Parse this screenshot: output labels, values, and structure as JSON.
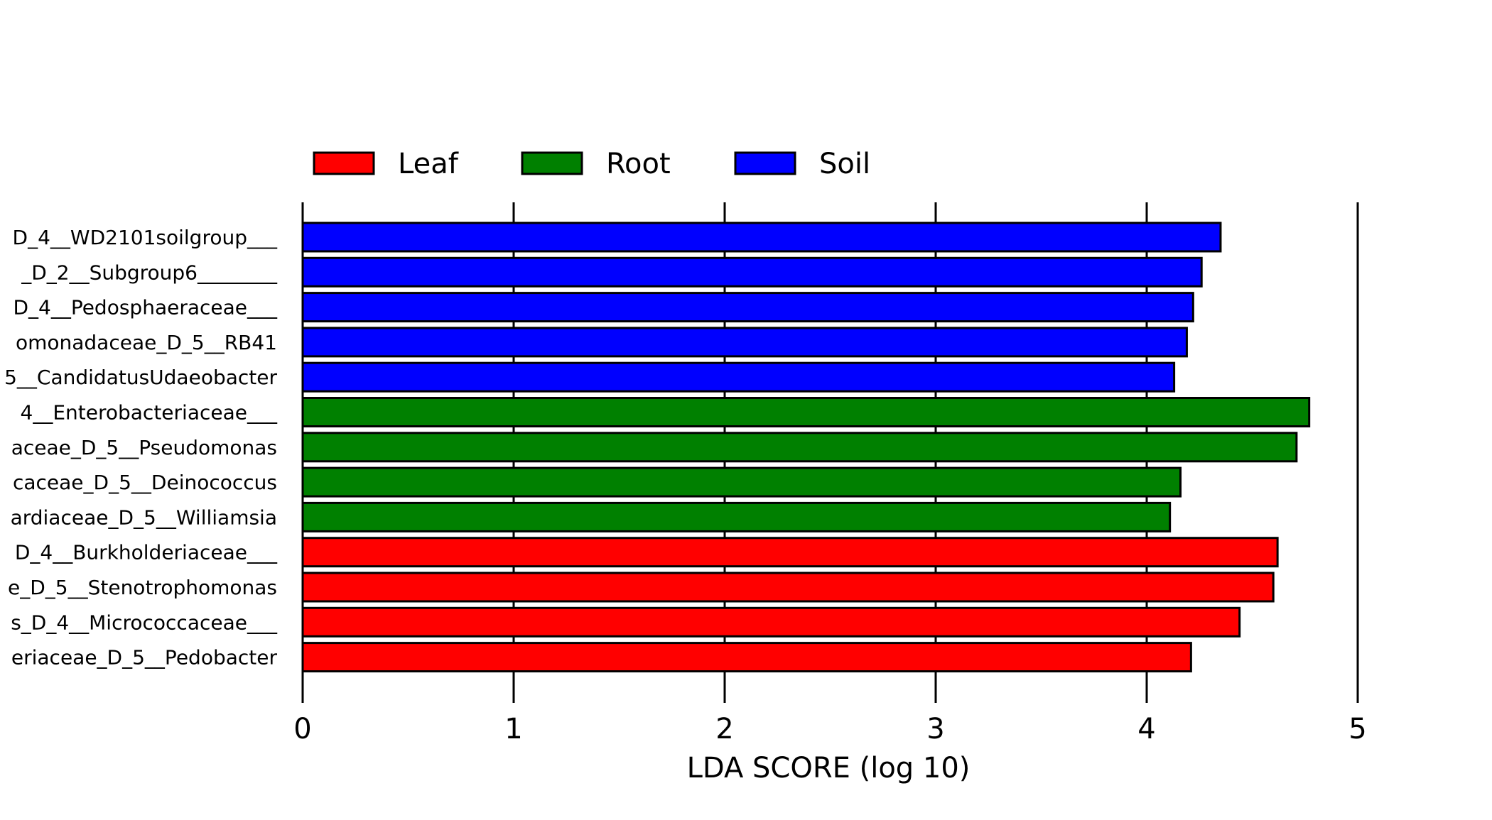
{
  "chart_data": {
    "type": "bar",
    "orientation": "horizontal",
    "xlabel": "LDA SCORE (log 10)",
    "xlim": [
      0,
      5
    ],
    "xticks": [
      "0",
      "1",
      "2",
      "3",
      "4",
      "5"
    ],
    "grid": "vertical lines at integer ticks",
    "legend": {
      "placement": "top-left",
      "entries": [
        {
          "name": "Leaf",
          "color": "#ff0000"
        },
        {
          "name": "Root",
          "color": "#008000"
        },
        {
          "name": "Soil",
          "color": "#0000ff"
        }
      ]
    },
    "bars": [
      {
        "label": "D_4__WD2101soilgroup___",
        "value": 4.35,
        "group": "Soil"
      },
      {
        "label": "_D_2__Subgroup6________",
        "value": 4.26,
        "group": "Soil"
      },
      {
        "label": "D_4__Pedosphaeraceae___",
        "value": 4.22,
        "group": "Soil"
      },
      {
        "label": "omonadaceae_D_5__RB41",
        "value": 4.19,
        "group": "Soil"
      },
      {
        "label": "5__CandidatusUdaeobacter",
        "value": 4.13,
        "group": "Soil"
      },
      {
        "label": "4__Enterobacteriaceae___",
        "value": 4.77,
        "group": "Root"
      },
      {
        "label": "aceae_D_5__Pseudomonas",
        "value": 4.71,
        "group": "Root"
      },
      {
        "label": "caceae_D_5__Deinococcus",
        "value": 4.16,
        "group": "Root"
      },
      {
        "label": "ardiaceae_D_5__Williamsia",
        "value": 4.11,
        "group": "Root"
      },
      {
        "label": "D_4__Burkholderiaceae___",
        "value": 4.62,
        "group": "Leaf"
      },
      {
        "label": "e_D_5__Stenotrophomonas",
        "value": 4.6,
        "group": "Leaf"
      },
      {
        "label": "s_D_4__Micrococcaceae___",
        "value": 4.44,
        "group": "Leaf"
      },
      {
        "label": "eriaceae_D_5__Pedobacter",
        "value": 4.21,
        "group": "Leaf"
      }
    ]
  }
}
